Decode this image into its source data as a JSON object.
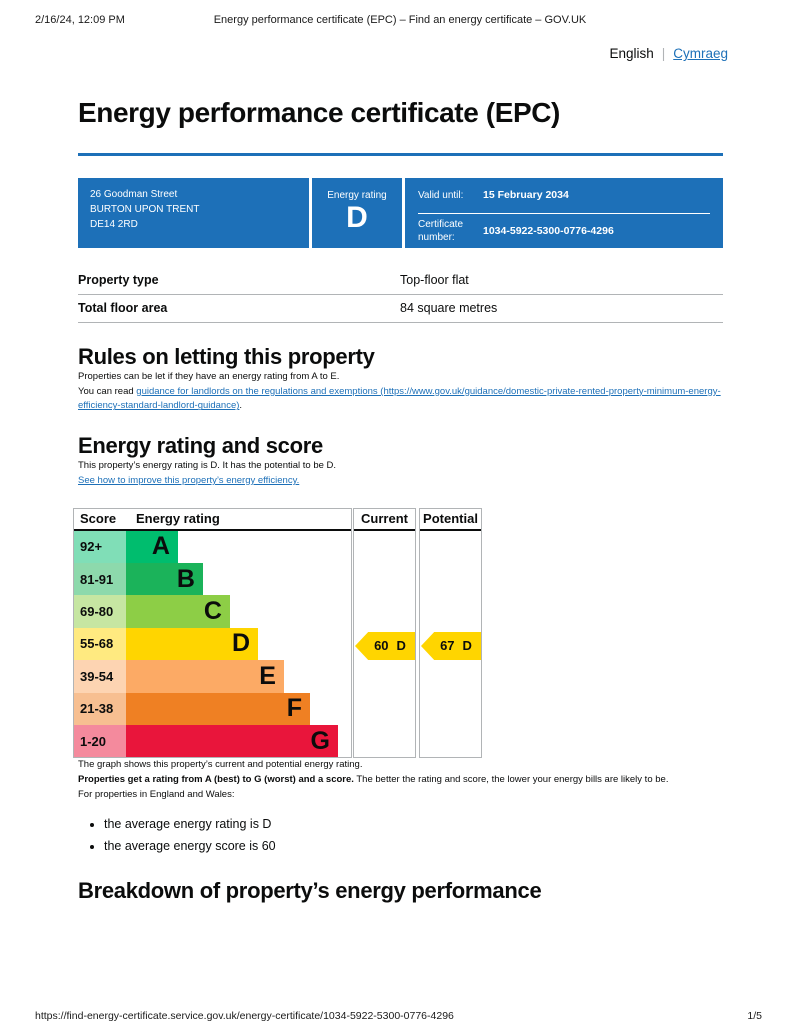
{
  "browser_chrome": {
    "datetime": "2/16/24, 12:09 PM",
    "page_title": "Energy performance certificate (EPC) – Find an energy certificate – GOV.UK",
    "footer_url": "https://find-energy-certificate.service.gov.uk/energy-certificate/1034-5922-5300-0776-4296",
    "page_indicator": "1/5"
  },
  "language_switch": {
    "current": "English",
    "separator": "|",
    "other": "Cymraeg"
  },
  "certificate": {
    "title": "Energy performance certificate (EPC)",
    "address_lines": [
      "26 Goodman Street",
      "BURTON UPON TRENT",
      "DE14 2RD"
    ],
    "energy_rating_label": "Energy rating",
    "energy_rating": "D",
    "valid_until_label": "Valid until:",
    "valid_until": "15 February 2034",
    "certificate_number_label": "Certificate number:",
    "certificate_number": "1034-5922-5300-0776-4296"
  },
  "property_summary": {
    "rows": [
      {
        "label": "Property type",
        "value": "Top-floor flat"
      },
      {
        "label": "Total floor area",
        "value": "84 square metres"
      }
    ]
  },
  "rules_section": {
    "heading": "Rules on letting this property",
    "paragraph1": "Properties can be let if they have an energy rating from A to E.",
    "paragraph2_prefix": "You can read ",
    "link_text": "guidance for landlords on the regulations and exemptions (https://www.gov.uk/guidance/domestic-private-rented-property-minimum-energy-efficiency-standard-landlord-guidance)",
    "paragraph2_suffix": "."
  },
  "rating_section": {
    "heading": "Energy rating and score",
    "paragraph": "This property’s energy rating is D. It has the potential to be D.",
    "improve_link": "See how to improve this property’s energy efficiency."
  },
  "chart_data": {
    "type": "epc-rating-chart",
    "columns": {
      "score": "Score",
      "rating": "Energy rating",
      "current": "Current",
      "potential": "Potential"
    },
    "bands": [
      {
        "score_range": "92+",
        "letter": "A",
        "min": 92,
        "max": 100,
        "color": "#00bd6e",
        "tint": "#80deb7",
        "width_pct": 23.1
      },
      {
        "score_range": "81-91",
        "letter": "B",
        "min": 81,
        "max": 91,
        "color": "#1bb35a",
        "tint": "#8dd9ac",
        "width_pct": 34.2
      },
      {
        "score_range": "69-80",
        "letter": "C",
        "min": 69,
        "max": 80,
        "color": "#8dce46",
        "tint": "#c6e6a2",
        "width_pct": 46.2
      },
      {
        "score_range": "55-68",
        "letter": "D",
        "min": 55,
        "max": 68,
        "color": "#ffd500",
        "tint": "#ffea80",
        "width_pct": 58.7
      },
      {
        "score_range": "39-54",
        "letter": "E",
        "min": 39,
        "max": 54,
        "color": "#fcaa65",
        "tint": "#fdd4b2",
        "width_pct": 70.2
      },
      {
        "score_range": "21-38",
        "letter": "F",
        "min": 21,
        "max": 38,
        "color": "#ef8023",
        "tint": "#f7bf91",
        "width_pct": 81.8
      },
      {
        "score_range": "1-20",
        "letter": "G",
        "min": 1,
        "max": 20,
        "color": "#e9153b",
        "tint": "#f48a9d",
        "width_pct": 94.2
      }
    ],
    "current": {
      "score": 60,
      "letter": "D",
      "band_index": 3
    },
    "potential": {
      "score": 67,
      "letter": "D",
      "band_index": 3
    },
    "arrow_color": "#ffd500"
  },
  "chart_notes": {
    "note1": "The graph shows this property’s current and potential energy rating.",
    "note2_bold": "Properties get a rating from A (best) to G (worst) and a score.",
    "note2_rest": " The better the rating and score, the lower your energy bills are likely to be.",
    "note3": "For properties in England and Wales:",
    "bullets": [
      "the average energy rating is D",
      "the average energy score is 60"
    ]
  },
  "breakdown_section": {
    "heading": "Breakdown of property’s energy performance"
  }
}
